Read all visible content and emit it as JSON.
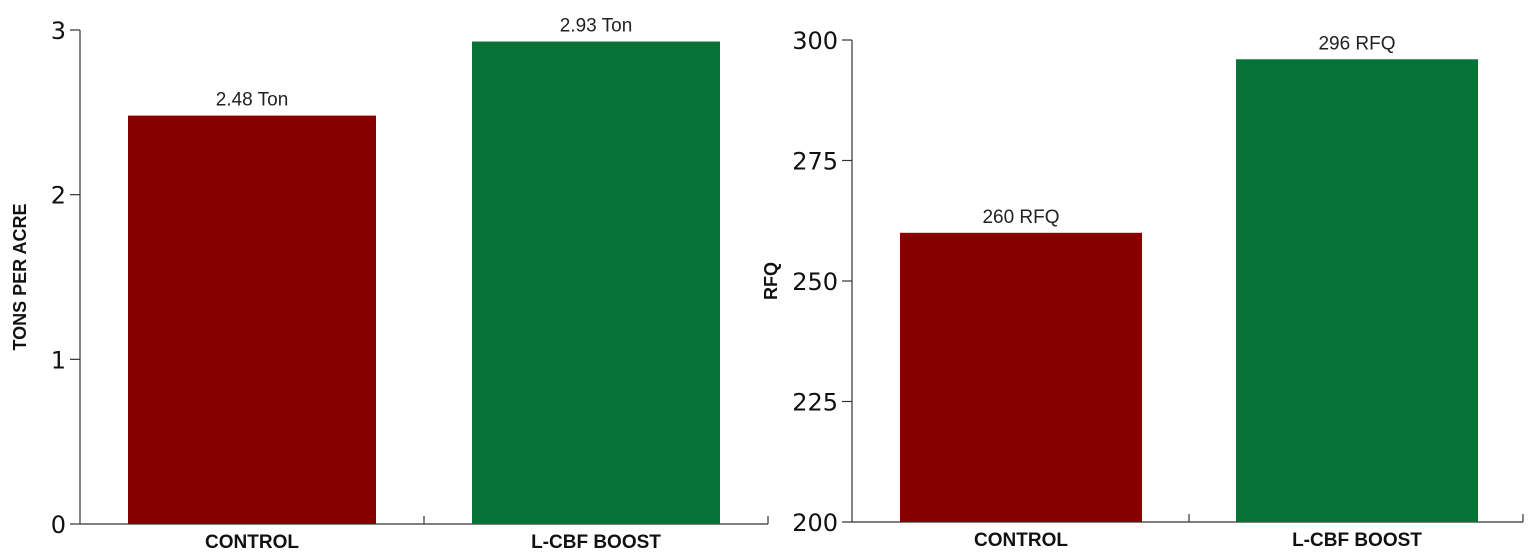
{
  "chart_data": [
    {
      "type": "bar",
      "categories": [
        "CONTROL",
        "L-CBF BOOST"
      ],
      "values": [
        2.48,
        2.93
      ],
      "data_labels": [
        "2.48 Ton",
        "2.93 Ton"
      ],
      "colors": [
        "#870000",
        "#077235"
      ],
      "xlabel": "",
      "ylabel": "TONS PER  ACRE",
      "ylim": [
        0,
        3
      ],
      "yticks": [
        0,
        1,
        2,
        3
      ],
      "grid": false
    },
    {
      "type": "bar",
      "categories": [
        "CONTROL",
        "L-CBF BOOST"
      ],
      "values": [
        260,
        296
      ],
      "data_labels": [
        "260 RFQ",
        "296 RFQ"
      ],
      "colors": [
        "#870000",
        "#077235"
      ],
      "xlabel": "",
      "ylabel": "RFQ",
      "ylim": [
        200,
        300
      ],
      "yticks": [
        200,
        225,
        250,
        275,
        300
      ],
      "grid": false
    }
  ]
}
